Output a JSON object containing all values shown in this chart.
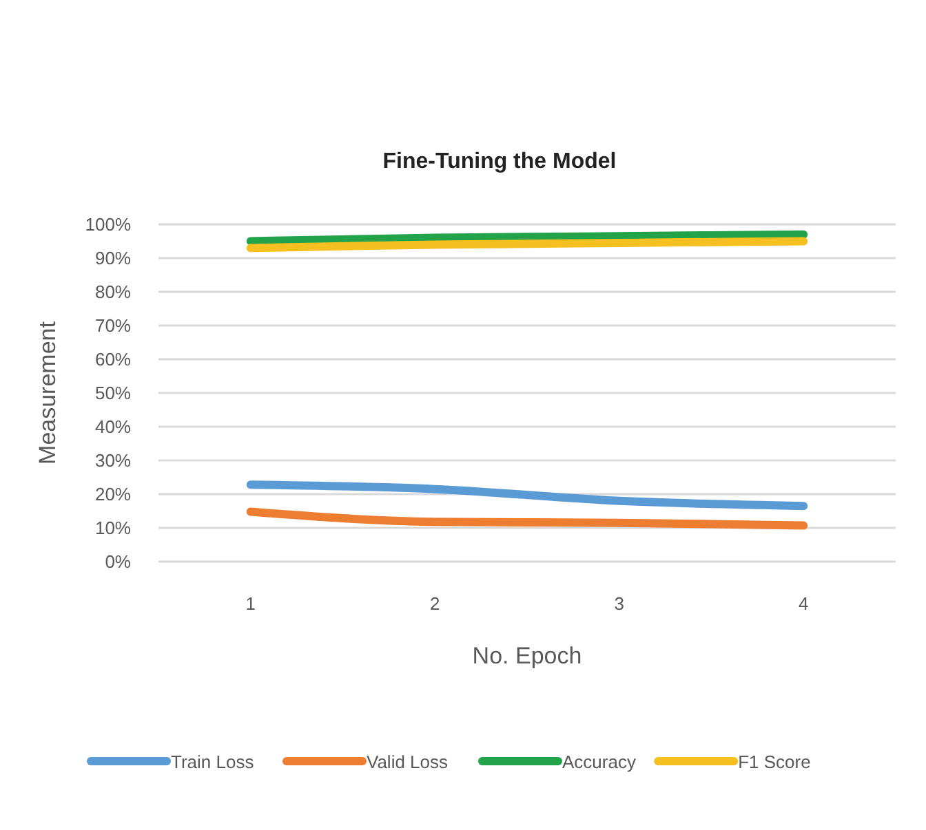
{
  "chart_data": {
    "type": "line",
    "title": "Fine-Tuning the Model",
    "xlabel": "No. Epoch",
    "ylabel": "Measurement",
    "categories": [
      "1",
      "2",
      "3",
      "4"
    ],
    "series": [
      {
        "name": "Train Loss",
        "color": "#5b9bd5",
        "values": [
          22.8,
          21.5,
          18,
          16.5
        ]
      },
      {
        "name": "Valid Loss",
        "color": "#ed7d31",
        "values": [
          14.8,
          11.8,
          11.5,
          10.7
        ]
      },
      {
        "name": "Accuracy",
        "color": "#22a34a",
        "values": [
          95,
          96,
          96.5,
          97
        ]
      },
      {
        "name": "F1 Score",
        "color": "#f5c020",
        "values": [
          93,
          94,
          94.5,
          95
        ]
      }
    ],
    "ylim": [
      0,
      100
    ],
    "yticks": [
      {
        "value": 0,
        "label": "0%"
      },
      {
        "value": 10,
        "label": "10%"
      },
      {
        "value": 20,
        "label": "20%"
      },
      {
        "value": 30,
        "label": "30%"
      },
      {
        "value": 40,
        "label": "40%"
      },
      {
        "value": 50,
        "label": "50%"
      },
      {
        "value": 60,
        "label": "60%"
      },
      {
        "value": 70,
        "label": "70%"
      },
      {
        "value": 80,
        "label": "80%"
      },
      {
        "value": 90,
        "label": "90%"
      },
      {
        "value": 100,
        "label": "100%"
      }
    ],
    "grid": "y",
    "legend": "bottom",
    "marker": "none",
    "line_style": "solid"
  }
}
